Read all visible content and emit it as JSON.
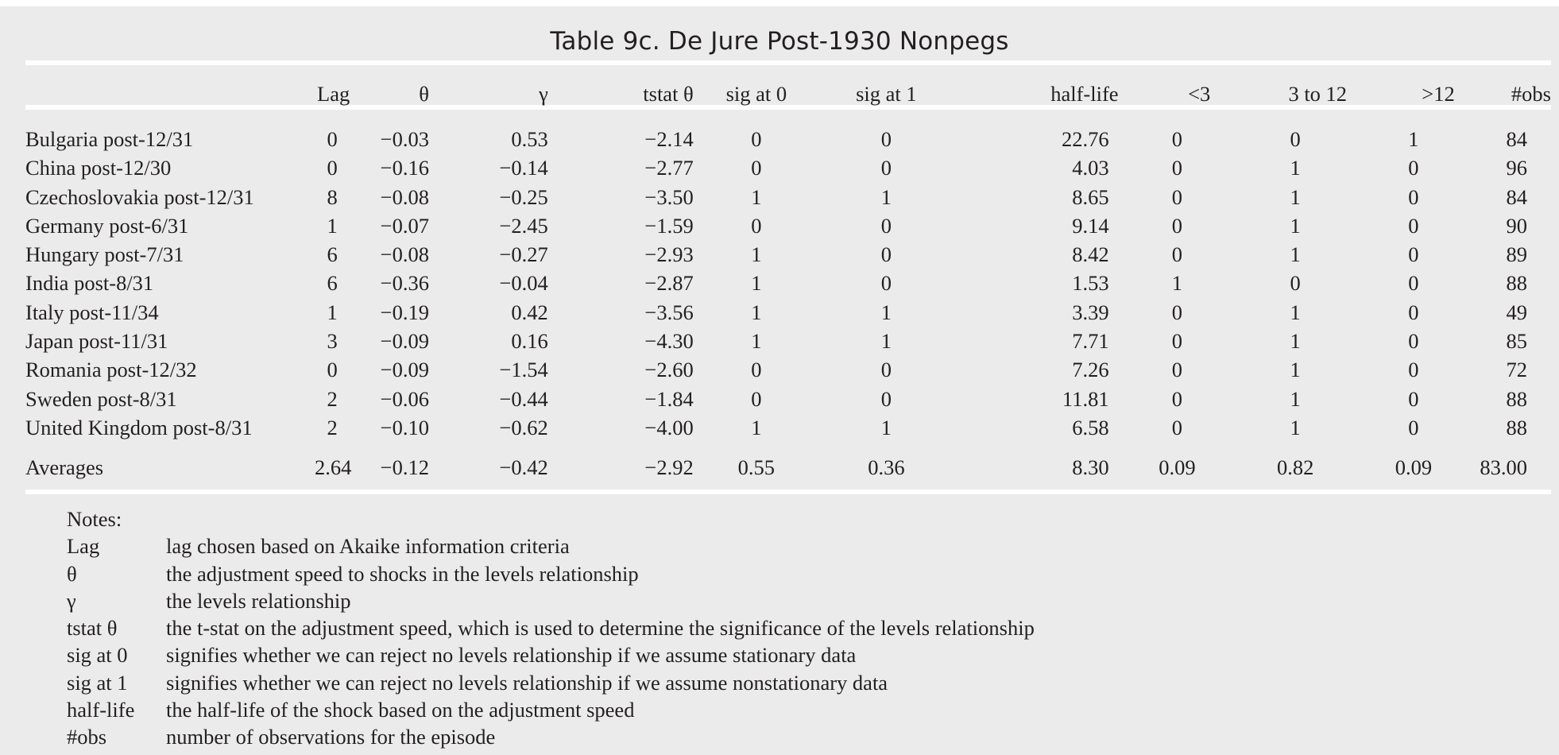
{
  "title": "Table 9c.  De Jure Post-1930 Nonpegs",
  "columns": [
    "Lag",
    "θ",
    "γ",
    "tstat θ",
    "sig at 0",
    "sig at 1",
    "half-life",
    "<3",
    "3 to 12",
    ">12",
    "#obs"
  ],
  "rows": [
    {
      "name": "Bulgaria post-12/31",
      "values": [
        "0",
        "−0.03",
        "0.53",
        "−2.14",
        "0",
        "0",
        "22.76",
        "0",
        "0",
        "1",
        "84"
      ]
    },
    {
      "name": "China post-12/30",
      "values": [
        "0",
        "−0.16",
        "−0.14",
        "−2.77",
        "0",
        "0",
        "4.03",
        "0",
        "1",
        "0",
        "96"
      ]
    },
    {
      "name": "Czechoslovakia post-12/31",
      "values": [
        "8",
        "−0.08",
        "−0.25",
        "−3.50",
        "1",
        "1",
        "8.65",
        "0",
        "1",
        "0",
        "84"
      ]
    },
    {
      "name": "Germany post-6/31",
      "values": [
        "1",
        "−0.07",
        "−2.45",
        "−1.59",
        "0",
        "0",
        "9.14",
        "0",
        "1",
        "0",
        "90"
      ]
    },
    {
      "name": "Hungary post-7/31",
      "values": [
        "6",
        "−0.08",
        "−0.27",
        "−2.93",
        "1",
        "0",
        "8.42",
        "0",
        "1",
        "0",
        "89"
      ]
    },
    {
      "name": "India post-8/31",
      "values": [
        "6",
        "−0.36",
        "−0.04",
        "−2.87",
        "1",
        "0",
        "1.53",
        "1",
        "0",
        "0",
        "88"
      ]
    },
    {
      "name": "Italy post-11/34",
      "values": [
        "1",
        "−0.19",
        "0.42",
        "−3.56",
        "1",
        "1",
        "3.39",
        "0",
        "1",
        "0",
        "49"
      ]
    },
    {
      "name": "Japan post-11/31",
      "values": [
        "3",
        "−0.09",
        "0.16",
        "−4.30",
        "1",
        "1",
        "7.71",
        "0",
        "1",
        "0",
        "85"
      ]
    },
    {
      "name": "Romania post-12/32",
      "values": [
        "0",
        "−0.09",
        "−1.54",
        "−2.60",
        "0",
        "0",
        "7.26",
        "0",
        "1",
        "0",
        "72"
      ]
    },
    {
      "name": "Sweden post-8/31",
      "values": [
        "2",
        "−0.06",
        "−0.44",
        "−1.84",
        "0",
        "0",
        "11.81",
        "0",
        "1",
        "0",
        "88"
      ]
    },
    {
      "name": "United Kingdom post-8/31",
      "values": [
        "2",
        "−0.10",
        "−0.62",
        "−4.00",
        "1",
        "1",
        "6.58",
        "0",
        "1",
        "0",
        "88"
      ]
    }
  ],
  "averages": {
    "name": "Averages",
    "values": [
      "2.64",
      "−0.12",
      "−0.42",
      "−2.92",
      "0.55",
      "0.36",
      "8.30",
      "0.09",
      "0.82",
      "0.09",
      "83.00"
    ]
  },
  "notes": {
    "heading": "Notes:",
    "items": [
      {
        "term": "Lag",
        "definition": "lag chosen based on Akaike information criteria"
      },
      {
        "term": "θ",
        "definition": "the adjustment speed to shocks in the levels relationship"
      },
      {
        "term": "γ",
        "definition": "the levels relationship"
      },
      {
        "term": "tstat θ",
        "definition": "the t-stat on the adjustment speed, which is used to determine the significance of the levels relationship"
      },
      {
        "term": "sig at 0",
        "definition": "signifies whether we can reject no levels relationship if we assume stationary data"
      },
      {
        "term": "sig at 1",
        "definition": "signifies whether we can reject no levels relationship if we assume nonstationary data"
      },
      {
        "term": "half-life",
        "definition": "the half-life of the shock based on the adjustment speed"
      },
      {
        "term": "#obs",
        "definition": "number of observations for the episode"
      }
    ]
  }
}
